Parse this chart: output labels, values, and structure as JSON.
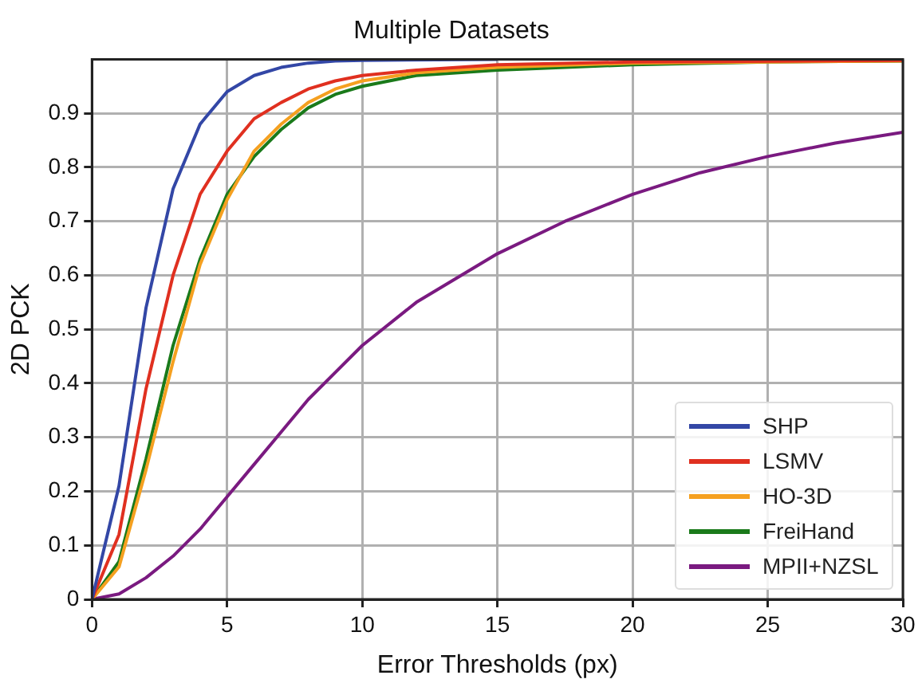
{
  "chart_data": {
    "type": "line",
    "title": "Multiple Datasets",
    "xlabel": "Error Thresholds (px)",
    "ylabel": "2D PCK",
    "xlim": [
      0,
      30
    ],
    "xticks": [
      0,
      5,
      10,
      15,
      20,
      25,
      30
    ],
    "ylim": [
      0,
      1.0
    ],
    "yticks": [
      0,
      0.1,
      0.2,
      0.3,
      0.4,
      0.5,
      0.6,
      0.7,
      0.8,
      0.9
    ],
    "grid": true,
    "legend": "bottom right",
    "marker": "none",
    "line_style": "solid",
    "series": [
      {
        "name": "SHP",
        "color": "#3347a6",
        "x": [
          0,
          1,
          2,
          3,
          4,
          5,
          6,
          7,
          8,
          9,
          10,
          15
        ],
        "values": [
          0,
          0.21,
          0.54,
          0.76,
          0.88,
          0.94,
          0.97,
          0.985,
          0.993,
          0.997,
          0.998,
          1.0
        ]
      },
      {
        "name": "LSMV",
        "color": "#e03020",
        "x": [
          0,
          1,
          2,
          3,
          4,
          5,
          6,
          7,
          8,
          9,
          10,
          12,
          15,
          20,
          30
        ],
        "values": [
          0,
          0.12,
          0.39,
          0.6,
          0.75,
          0.83,
          0.89,
          0.92,
          0.945,
          0.96,
          0.97,
          0.98,
          0.99,
          0.995,
          0.998
        ]
      },
      {
        "name": "HO-3D",
        "color": "#f5a020",
        "x": [
          0,
          1,
          2,
          3,
          4,
          5,
          6,
          7,
          8,
          9,
          10,
          12,
          15,
          20,
          30
        ],
        "values": [
          0,
          0.06,
          0.24,
          0.44,
          0.62,
          0.74,
          0.83,
          0.88,
          0.92,
          0.945,
          0.96,
          0.975,
          0.985,
          0.993,
          0.997
        ]
      },
      {
        "name": "FreiHand",
        "color": "#1a7a1a",
        "x": [
          0,
          1,
          2,
          3,
          4,
          5,
          6,
          7,
          8,
          9,
          10,
          12,
          15,
          20,
          25,
          30
        ],
        "values": [
          0,
          0.07,
          0.26,
          0.47,
          0.63,
          0.75,
          0.82,
          0.87,
          0.91,
          0.935,
          0.95,
          0.97,
          0.98,
          0.99,
          0.995,
          0.997
        ]
      },
      {
        "name": "MPII+NZSL",
        "color": "#7a1a80",
        "x": [
          0,
          1,
          2,
          3,
          4,
          5,
          6,
          7,
          8,
          9,
          10,
          12,
          15,
          17.5,
          20,
          22.5,
          25,
          27.5,
          30
        ],
        "values": [
          0,
          0.01,
          0.04,
          0.08,
          0.13,
          0.19,
          0.25,
          0.31,
          0.37,
          0.42,
          0.47,
          0.55,
          0.64,
          0.7,
          0.75,
          0.79,
          0.82,
          0.845,
          0.865
        ]
      }
    ]
  }
}
